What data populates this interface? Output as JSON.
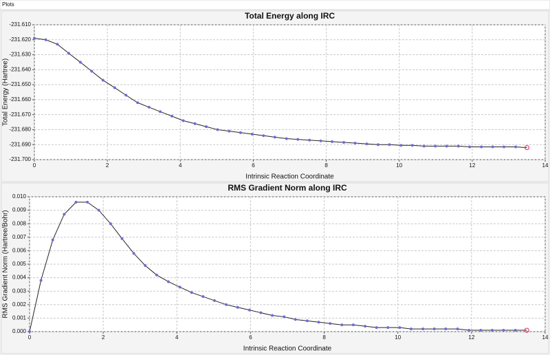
{
  "window": {
    "title": "Plots"
  },
  "chart_data": [
    {
      "type": "line",
      "title": "Total Energy along IRC",
      "x_label": "Intrinsic Reaction Coordinate",
      "y_label": "Total Energy (Hartree)",
      "x": [
        0,
        0.31,
        0.63,
        0.94,
        1.26,
        1.57,
        1.88,
        2.2,
        2.51,
        2.83,
        3.14,
        3.45,
        3.77,
        4.08,
        4.4,
        4.71,
        5.02,
        5.34,
        5.65,
        5.97,
        6.28,
        6.59,
        6.91,
        7.22,
        7.54,
        7.85,
        8.16,
        8.48,
        8.79,
        9.11,
        9.42,
        9.73,
        10.05,
        10.36,
        10.68,
        10.99,
        11.3,
        11.62,
        11.93,
        12.25,
        12.56,
        12.87,
        13.19,
        13.5
      ],
      "values": [
        -231.619,
        -231.62,
        -231.623,
        -231.629,
        -231.635,
        -231.641,
        -231.647,
        -231.652,
        -231.657,
        -231.662,
        -231.665,
        -231.668,
        -231.671,
        -231.674,
        -231.676,
        -231.678,
        -231.68,
        -231.681,
        -231.682,
        -231.683,
        -231.684,
        -231.685,
        -231.686,
        -231.6865,
        -231.687,
        -231.6875,
        -231.688,
        -231.6885,
        -231.689,
        -231.6895,
        -231.69,
        -231.69,
        -231.6905,
        -231.6905,
        -231.691,
        -231.691,
        -231.691,
        -231.691,
        -231.6915,
        -231.6915,
        -231.6915,
        -231.6915,
        -231.6915,
        -231.692
      ],
      "color": "#222222",
      "marker_color": "#6b6bd6",
      "highlight_color": "#e0406a",
      "grid": true,
      "xlim": [
        0,
        14
      ],
      "xticks": [
        0,
        2,
        4,
        6,
        8,
        10,
        12,
        14
      ],
      "ylim": [
        -231.7,
        -231.61
      ],
      "yticks": [
        {
          "value": -231.7,
          "label": "-231.700"
        },
        {
          "value": -231.69,
          "label": "-231.690"
        },
        {
          "value": -231.68,
          "label": "-231.680"
        },
        {
          "value": -231.67,
          "label": "-231.670"
        },
        {
          "value": -231.66,
          "label": "-231.660"
        },
        {
          "value": -231.65,
          "label": "-231.650"
        },
        {
          "value": -231.64,
          "label": "-231.640"
        },
        {
          "value": -231.63,
          "label": "-231.630"
        },
        {
          "value": -231.62,
          "label": "-231.620"
        },
        {
          "value": -231.61,
          "label": "-231.610"
        }
      ]
    },
    {
      "type": "line",
      "title": "RMS Gradient Norm along IRC",
      "x_label": "Intrinsic Reaction Coordinate",
      "y_label": "RMS Gradient Norm (Hartree/Bohr)",
      "x": [
        0,
        0.31,
        0.63,
        0.94,
        1.26,
        1.57,
        1.88,
        2.2,
        2.51,
        2.83,
        3.14,
        3.45,
        3.77,
        4.08,
        4.4,
        4.71,
        5.02,
        5.34,
        5.65,
        5.97,
        6.28,
        6.59,
        6.91,
        7.22,
        7.54,
        7.85,
        8.16,
        8.48,
        8.79,
        9.11,
        9.42,
        9.73,
        10.05,
        10.36,
        10.68,
        10.99,
        11.3,
        11.62,
        11.93,
        12.25,
        12.56,
        12.87,
        13.19,
        13.5
      ],
      "values": [
        0,
        0.0038,
        0.0068,
        0.0087,
        0.0096,
        0.0096,
        0.009,
        0.008,
        0.0069,
        0.0058,
        0.0049,
        0.0042,
        0.0037,
        0.0033,
        0.0029,
        0.0026,
        0.0023,
        0.002,
        0.0018,
        0.0016,
        0.0014,
        0.0012,
        0.0011,
        0.0009,
        0.0008,
        0.0007,
        0.0006,
        0.0005,
        0.0005,
        0.0004,
        0.0003,
        0.0003,
        0.0003,
        0.0002,
        0.0002,
        0.0002,
        0.0002,
        0.0002,
        0.0001,
        0.0001,
        0.0001,
        0.0001,
        0.0001,
        0.0001
      ],
      "color": "#222222",
      "marker_color": "#6b6bd6",
      "highlight_color": "#e0406a",
      "grid": true,
      "xlim": [
        0,
        14
      ],
      "xticks": [
        0,
        2,
        4,
        6,
        8,
        10,
        12,
        14
      ],
      "ylim": [
        0,
        0.01
      ],
      "yticks": [
        {
          "value": 0,
          "label": "0.000"
        },
        {
          "value": 0.001,
          "label": "0.001"
        },
        {
          "value": 0.002,
          "label": "0.002"
        },
        {
          "value": 0.003,
          "label": "0.003"
        },
        {
          "value": 0.004,
          "label": "0.004"
        },
        {
          "value": 0.005,
          "label": "0.005"
        },
        {
          "value": 0.006,
          "label": "0.006"
        },
        {
          "value": 0.007,
          "label": "0.007"
        },
        {
          "value": 0.008,
          "label": "0.008"
        },
        {
          "value": 0.009,
          "label": "0.009"
        },
        {
          "value": 0.01,
          "label": "0.010"
        }
      ]
    }
  ]
}
